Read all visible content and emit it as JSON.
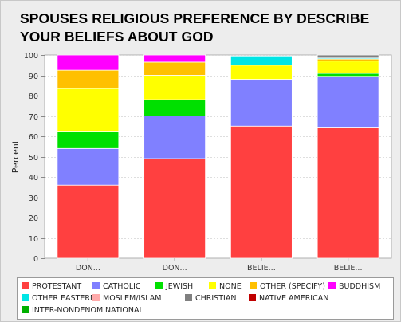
{
  "title": "SPOUSES RELIGIOUS PREFERENCE BY DESCRIBE YOUR BELIEFS ABOUT GOD",
  "chart_data": {
    "type": "bar",
    "stacked": true,
    "title": "SPOUSES RELIGIOUS PREFERENCE BY DESCRIBE YOUR BELIEFS ABOUT GOD",
    "xlabel": "",
    "ylabel": "Percent",
    "ylim": [
      0,
      100
    ],
    "yticks": [
      0,
      10,
      20,
      30,
      40,
      50,
      60,
      70,
      80,
      90,
      100
    ],
    "grid": true,
    "legend_position": "bottom",
    "categories": [
      "DON...",
      "DON...",
      "BELIE...",
      "BELIE..."
    ],
    "series": [
      {
        "name": "PROTESTANT",
        "color": "#ff4040",
        "values": [
          36,
          49,
          65,
          64.5
        ]
      },
      {
        "name": "CATHOLIC",
        "color": "#8080ff",
        "values": [
          18,
          21,
          23,
          25
        ]
      },
      {
        "name": "JEWISH",
        "color": "#00e000",
        "values": [
          8.5,
          8,
          0,
          1.5
        ]
      },
      {
        "name": "NONE",
        "color": "#ffff00",
        "values": [
          21,
          12,
          7,
          6
        ]
      },
      {
        "name": "OTHER (SPECIFY)",
        "color": "#ffc000",
        "values": [
          9,
          6.5,
          0,
          1
        ]
      },
      {
        "name": "BUDDHISM",
        "color": "#ff00ff",
        "values": [
          7.5,
          3.5,
          0,
          0
        ]
      },
      {
        "name": "OTHER EASTERN",
        "color": "#00e5e5",
        "values": [
          0,
          0,
          4.5,
          0.5
        ]
      },
      {
        "name": "MOSLEM/ISLAM",
        "color": "#ffaaaa",
        "values": [
          0,
          0,
          0,
          0
        ]
      },
      {
        "name": "CHRISTIAN",
        "color": "#808080",
        "values": [
          0,
          0,
          0,
          1.5
        ]
      },
      {
        "name": "NATIVE AMERICAN",
        "color": "#c00000",
        "values": [
          0,
          0,
          0,
          0
        ]
      },
      {
        "name": "INTER-NONDENOMINATIONAL",
        "color": "#00b000",
        "values": [
          0,
          0,
          0,
          0
        ]
      }
    ]
  }
}
